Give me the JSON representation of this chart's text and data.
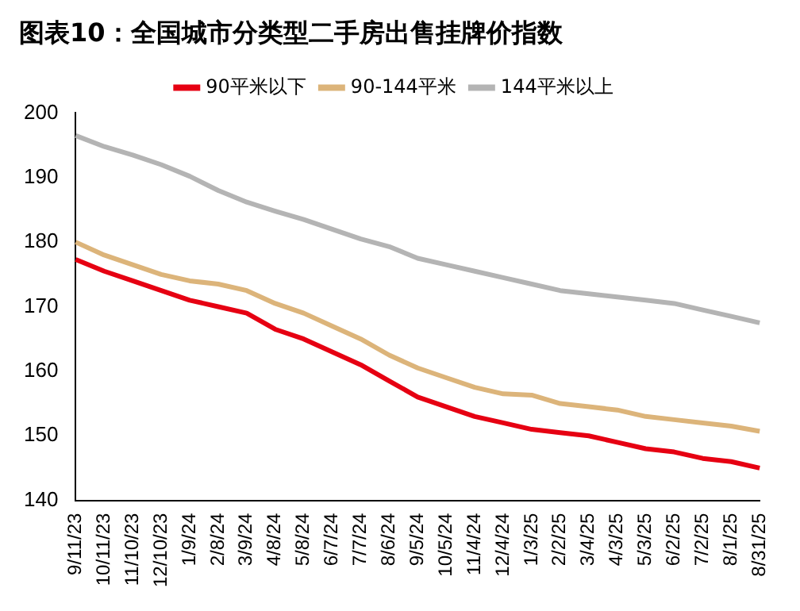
{
  "chart_data": {
    "type": "line",
    "title": "图表10：全国城市分类型二手房出售挂牌价指数",
    "categories": [
      "9/11/23",
      "10/11/23",
      "11/10/23",
      "12/10/23",
      "1/9/24",
      "2/8/24",
      "3/9/24",
      "4/8/24",
      "5/8/24",
      "6/7/24",
      "7/7/24",
      "8/6/24",
      "9/5/24",
      "10/5/24",
      "11/4/24",
      "12/4/24",
      "1/3/25",
      "2/2/25",
      "3/4/25",
      "4/3/25",
      "5/3/25",
      "6/2/25",
      "7/2/25",
      "8/1/25",
      "8/31/25"
    ],
    "series": [
      {
        "name": "90平米以下",
        "color": "#e60012",
        "values": [
          177.3,
          175.5,
          174,
          172.5,
          171,
          170,
          169,
          166.5,
          165,
          163,
          161,
          158.5,
          156,
          154.5,
          153,
          152,
          151,
          150.5,
          150,
          149,
          148,
          147.5,
          146.5,
          146,
          145
        ]
      },
      {
        "name": "90-144平米",
        "color": "#dcb47a",
        "values": [
          180,
          178,
          176.5,
          175,
          174,
          173.5,
          172.5,
          170.5,
          169,
          167,
          165,
          162.5,
          160.5,
          159,
          157.5,
          156.5,
          156.3,
          155,
          154.5,
          154,
          153,
          152.5,
          152,
          151.5,
          150.7
        ]
      },
      {
        "name": "144平米以上",
        "color": "#b4b4b4",
        "values": [
          196.5,
          194.8,
          193.5,
          192,
          190.2,
          188,
          186.2,
          184.8,
          183.5,
          182,
          180.5,
          179.3,
          177.5,
          176.5,
          175.5,
          174.5,
          173.5,
          172.5,
          172,
          171.5,
          171,
          170.5,
          169.5,
          168.5,
          167.5
        ]
      }
    ],
    "ylim": [
      140,
      200
    ],
    "yticks": [
      140,
      150,
      160,
      170,
      180,
      190,
      200
    ],
    "grid": false,
    "legend": "top",
    "marker": "none",
    "line_style": "solid"
  }
}
